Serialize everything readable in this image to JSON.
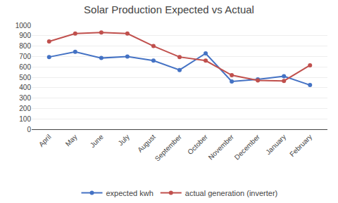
{
  "chart_data": {
    "type": "line",
    "title": "Solar Production Expected vs Actual",
    "categories": [
      "April",
      "May",
      "June",
      "July",
      "August",
      "September",
      "October",
      "November",
      "December",
      "January",
      "February"
    ],
    "series": [
      {
        "name": "expected kwh",
        "color": "#4472C4",
        "marker": "circle",
        "values": [
          695,
          745,
          685,
          700,
          660,
          570,
          730,
          460,
          480,
          510,
          425
        ]
      },
      {
        "name": "actual generation (inverter)",
        "color": "#C0504D",
        "marker": "circle",
        "values": [
          845,
          920,
          930,
          920,
          800,
          695,
          660,
          520,
          470,
          465,
          615
        ]
      }
    ],
    "ylim": [
      0,
      1000
    ],
    "yticks": [
      0,
      100,
      200,
      300,
      400,
      500,
      600,
      700,
      800,
      900,
      1000
    ],
    "grid": true,
    "legend": "bottom"
  }
}
